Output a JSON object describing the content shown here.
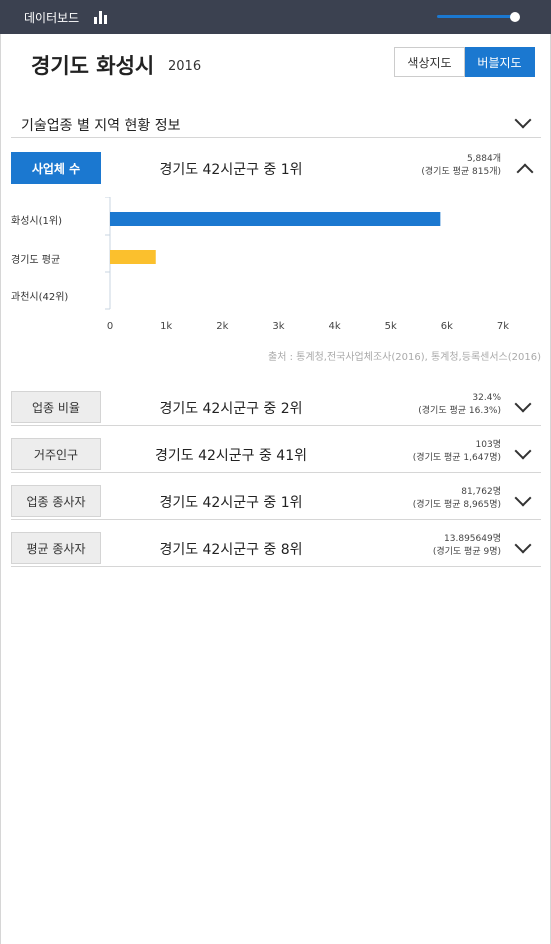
{
  "app": {
    "title": "데이터보드",
    "icon": "bar-chart-icon",
    "slider_level_percent": 95
  },
  "region": {
    "name": "경기도 화성시",
    "year": "2016"
  },
  "map_toggle": {
    "options": [
      "색상지도",
      "버블지도"
    ],
    "selected": "버블지도"
  },
  "section": {
    "label": "기술업종 별 지역 현황 정보"
  },
  "indicators": [
    {
      "label": "사업체 수",
      "rank": "경기도 42시군구 중 1위",
      "value": "5,884개",
      "avg": "(경기도 평균 815개)",
      "expanded": true
    },
    {
      "label": "업종 비율",
      "rank": "경기도 42시군구 중 2위",
      "value": "32.4%",
      "avg": "(경기도 평균 16.3%)",
      "expanded": false
    },
    {
      "label": "거주인구",
      "rank": "경기도 42시군구 중 41위",
      "value": "103명",
      "avg": "(경기도 평균 1,647명)",
      "expanded": false
    },
    {
      "label": "업종 종사자",
      "rank": "경기도 42시군구 중 1위",
      "value": "81,762명",
      "avg": "(경기도 평균 8,965명)",
      "expanded": false
    },
    {
      "label": "평균 종사자",
      "rank": "경기도 42시군구 중 8위",
      "value": "13.895649명",
      "avg": "(경기도 평균 9명)",
      "expanded": false
    }
  ],
  "chart_data": {
    "type": "bar",
    "orientation": "horizontal",
    "categories": [
      "화성시(1위)",
      "경기도 평균",
      "과천시(42위)"
    ],
    "values": [
      5884,
      815,
      0
    ],
    "colors": [
      "#1b78d0",
      "#fbc02d",
      "#1b78d0"
    ],
    "xlim": [
      0,
      7000
    ],
    "xticks": [
      "0",
      "1k",
      "2k",
      "3k",
      "4k",
      "5k",
      "6k",
      "7k"
    ],
    "xtick_values": [
      0,
      1000,
      2000,
      3000,
      4000,
      5000,
      6000,
      7000
    ],
    "grid": false
  },
  "source": "출처 : 통계청,전국사업체조사(2016), 통계청,등록센서스(2016)"
}
